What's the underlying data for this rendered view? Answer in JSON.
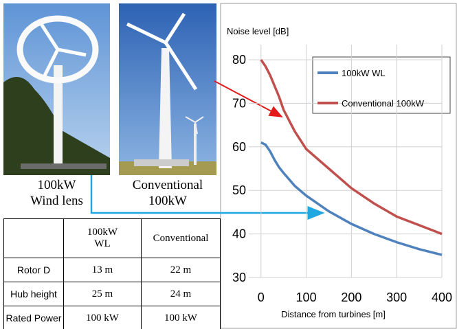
{
  "images": [
    {
      "caption": [
        "100kW",
        "Wind lens"
      ]
    },
    {
      "caption": [
        "Conventional",
        "100kW"
      ]
    }
  ],
  "table": {
    "header": [
      [
        "100kW",
        "WL"
      ],
      "Conventional"
    ],
    "rows": [
      [
        "Rotor D",
        "13 m",
        "22 m"
      ],
      [
        "Hub height",
        "25 m",
        "24 m"
      ],
      [
        "Rated Power",
        "100 kW",
        "100 kW"
      ]
    ]
  },
  "chart_data": {
    "type": "line",
    "y_label": "Noise level [dB]",
    "x_label": "Distance from turbines [m]",
    "x": [
      0,
      10,
      20,
      30,
      40,
      50,
      75,
      100,
      150,
      200,
      250,
      300,
      350,
      400
    ],
    "series": [
      {
        "name": "100kW WL",
        "color": "#4f81bd",
        "values": [
          61,
          60.5,
          59,
          57,
          55.3,
          54,
          51,
          48.8,
          45.2,
          42.3,
          40,
          38.1,
          36.5,
          35.2
        ]
      },
      {
        "name": "Conventional 100kW",
        "color": "#c0504d",
        "values": [
          80,
          78.5,
          76.5,
          74,
          71.5,
          68.5,
          63.5,
          59.5,
          55,
          50.5,
          47,
          44,
          42,
          40
        ]
      }
    ],
    "xlim": [
      -27,
      400
    ],
    "ylim": [
      30,
      80
    ],
    "xticks": [
      0,
      100,
      200,
      300,
      400
    ],
    "yticks": [
      30,
      40,
      50,
      60,
      70,
      80
    ],
    "grid": true
  }
}
